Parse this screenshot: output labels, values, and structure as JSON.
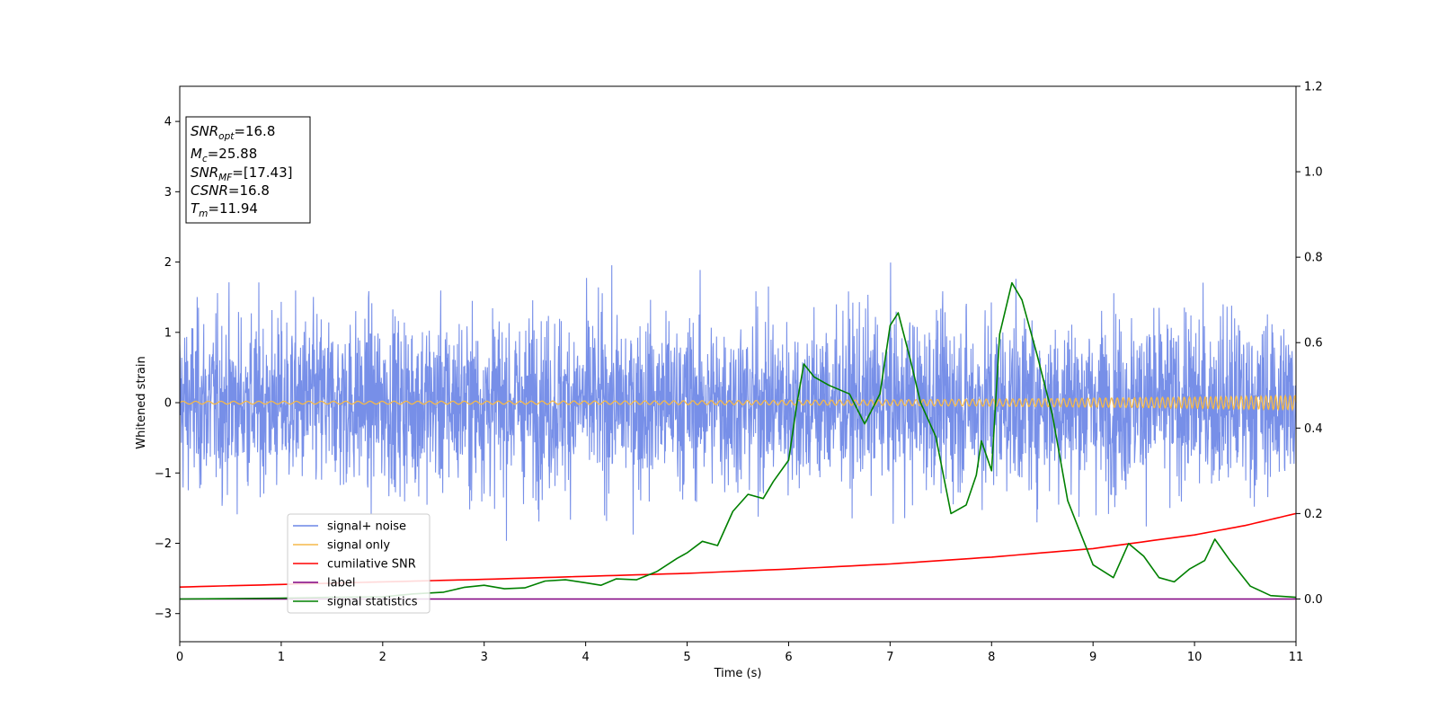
{
  "chart_data": {
    "type": "line",
    "xlabel": "Time (s)",
    "ylabel": "Whitened strain",
    "xlim": [
      0,
      11
    ],
    "ylim_left": [
      -3.4,
      4.5
    ],
    "ylim_right": [
      -0.1,
      1.2
    ],
    "x_ticks": [
      0,
      1,
      2,
      3,
      4,
      5,
      6,
      7,
      8,
      9,
      10,
      11
    ],
    "y_ticks_left": [
      -3,
      -2,
      -1,
      0,
      1,
      2,
      3,
      4
    ],
    "y_ticks_right": [
      0.0,
      0.2,
      0.4,
      0.6,
      0.8,
      1.0,
      1.2
    ],
    "legend_position": "lower-left",
    "colors": {
      "signal_noise": "#6b86e6",
      "signal_only": "#f5b94a",
      "cumulative_snr": "#ff0000",
      "label": "#800080",
      "signal_statistics": "#008000"
    },
    "annotation": {
      "lines": [
        {
          "base": "SNR",
          "sub": "opt",
          "value": "=16.8"
        },
        {
          "base": "M",
          "sub": "c",
          "value": "=25.88"
        },
        {
          "base": "SNR",
          "sub": "MF",
          "value": "=[17.43]"
        },
        {
          "base": "CSNR",
          "sub": "",
          "value": "=16.8"
        },
        {
          "base": "T",
          "sub": "m",
          "value": "=11.94"
        }
      ]
    },
    "series": [
      {
        "name": "signal+ noise",
        "axis": "left",
        "style": "noise band",
        "band_typical": [
          -1.2,
          1.2
        ],
        "band_peaks": [
          -2.7,
          2.45
        ]
      },
      {
        "name": "signal only",
        "axis": "left",
        "style": "chirp",
        "amplitude_start": 0.02,
        "amplitude_end": 0.1
      },
      {
        "name": "cumilative SNR",
        "axis": "right",
        "x": [
          0,
          1,
          2,
          3,
          4,
          5,
          6,
          7,
          8,
          9,
          10,
          10.5,
          11
        ],
        "y": [
          0.028,
          0.034,
          0.04,
          0.046,
          0.053,
          0.06,
          0.07,
          0.082,
          0.098,
          0.118,
          0.15,
          0.172,
          0.2
        ]
      },
      {
        "name": "label",
        "axis": "right",
        "x": [
          0,
          11
        ],
        "y": [
          0.0,
          0.0
        ]
      },
      {
        "name": "signal statistics",
        "axis": "right",
        "x": [
          0,
          0.5,
          1,
          1.5,
          2,
          2.3,
          2.6,
          2.8,
          3.0,
          3.2,
          3.4,
          3.6,
          3.8,
          4.0,
          4.15,
          4.3,
          4.5,
          4.7,
          4.9,
          5.0,
          5.15,
          5.3,
          5.45,
          5.6,
          5.75,
          5.85,
          6.0,
          6.08,
          6.15,
          6.25,
          6.4,
          6.6,
          6.75,
          6.9,
          7.0,
          7.08,
          7.2,
          7.3,
          7.45,
          7.6,
          7.75,
          7.85,
          7.9,
          8.0,
          8.08,
          8.2,
          8.3,
          8.45,
          8.6,
          8.75,
          8.85,
          9.0,
          9.2,
          9.35,
          9.5,
          9.65,
          9.8,
          9.95,
          10.1,
          10.2,
          10.35,
          10.55,
          10.75,
          11.0
        ],
        "y": [
          0.0,
          0.001,
          0.002,
          0.004,
          0.005,
          0.012,
          0.016,
          0.027,
          0.032,
          0.024,
          0.026,
          0.042,
          0.045,
          0.038,
          0.032,
          0.047,
          0.045,
          0.064,
          0.095,
          0.108,
          0.135,
          0.125,
          0.205,
          0.245,
          0.235,
          0.275,
          0.325,
          0.455,
          0.55,
          0.52,
          0.5,
          0.48,
          0.41,
          0.48,
          0.64,
          0.67,
          0.56,
          0.46,
          0.38,
          0.2,
          0.22,
          0.29,
          0.37,
          0.3,
          0.62,
          0.74,
          0.7,
          0.57,
          0.43,
          0.23,
          0.17,
          0.08,
          0.05,
          0.13,
          0.1,
          0.05,
          0.04,
          0.07,
          0.09,
          0.14,
          0.09,
          0.03,
          0.008,
          0.004
        ]
      }
    ]
  }
}
